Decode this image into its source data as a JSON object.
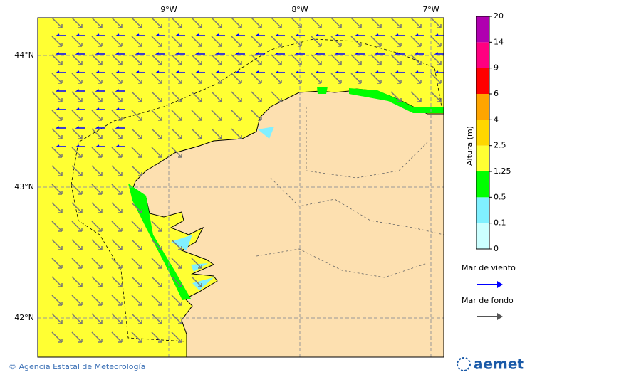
{
  "map": {
    "lon_labels": [
      "9°W",
      "8°W",
      "7°W"
    ],
    "lat_labels": [
      "44°N",
      "43°N",
      "42°N"
    ]
  },
  "colorbar": {
    "title": "Altura (m)",
    "levels": [
      0,
      0.1,
      0.5,
      1.25,
      2.5,
      4,
      6,
      9,
      14,
      20
    ],
    "colors": [
      "#ccffff",
      "#80f0ff",
      "#00ff00",
      "#ffff33",
      "#ffd700",
      "#ffa500",
      "#ff0000",
      "#ff0080",
      "#b000b0"
    ]
  },
  "legend": [
    {
      "label": "Mar de viento",
      "color": "#0000ff"
    },
    {
      "label": "Mar de fondo",
      "color": "#555555"
    }
  ],
  "footer": {
    "credit": "© Agencia Estatal de Meteorología",
    "logo": "aemet"
  }
}
